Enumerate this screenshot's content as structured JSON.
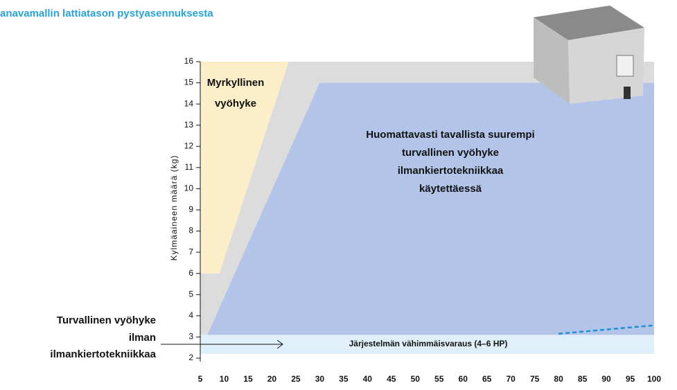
{
  "chart_data": {
    "type": "area",
    "title": "anavamallin lattiatason pystyasennuksesta",
    "y_label": "Kylmäaineen määrä (kg)",
    "xlim": [
      5,
      100
    ],
    "ylim": [
      2,
      16
    ],
    "xticks": [
      5,
      10,
      15,
      20,
      25,
      30,
      35,
      40,
      45,
      50,
      55,
      60,
      65,
      70,
      75,
      80,
      85,
      90,
      95,
      100
    ],
    "yticks": [
      2,
      3,
      4,
      5,
      6,
      7,
      8,
      9,
      10,
      11,
      12,
      13,
      14,
      15,
      16
    ],
    "series": [
      {
        "color": "#dcdcdc",
        "x": [
          5,
          5,
          9,
          23.5,
          100,
          100
        ],
        "values": [
          3.1,
          6,
          6,
          16,
          16,
          3.1
        ]
      },
      {
        "color": "#fbeec8",
        "x": [
          5,
          9,
          23.5,
          5
        ],
        "values": [
          6,
          6,
          16,
          16
        ]
      },
      {
        "color": "#b2c5e8",
        "x": [
          6.5,
          30,
          100,
          100
        ],
        "values": [
          3.1,
          15,
          15,
          3.1
        ]
      },
      {
        "color": "#dff0fa",
        "x": [
          5,
          100,
          100,
          5
        ],
        "values": [
          2.2,
          2.2,
          3.1,
          3.1
        ]
      },
      {
        "color": "#1f8fd6",
        "dashed": true,
        "x": [
          80,
          100
        ],
        "values": [
          3.15,
          3.55
        ]
      }
    ],
    "annotations": {
      "toxic": [
        "Myrkyllinen",
        "vyöhyke"
      ],
      "safe_with": [
        "Huomattavasti tavallista suurempi",
        "turvallinen vyöhyke",
        "ilmankiertotekniikkaa",
        "käytettäessä"
      ],
      "safe_without": [
        "Turvallinen vyöhyke",
        "ilman",
        "ilmankiertotekniikkaa"
      ],
      "minimum": "Järjestelmän vähimmäisvaraus (4–6 HP)"
    }
  }
}
